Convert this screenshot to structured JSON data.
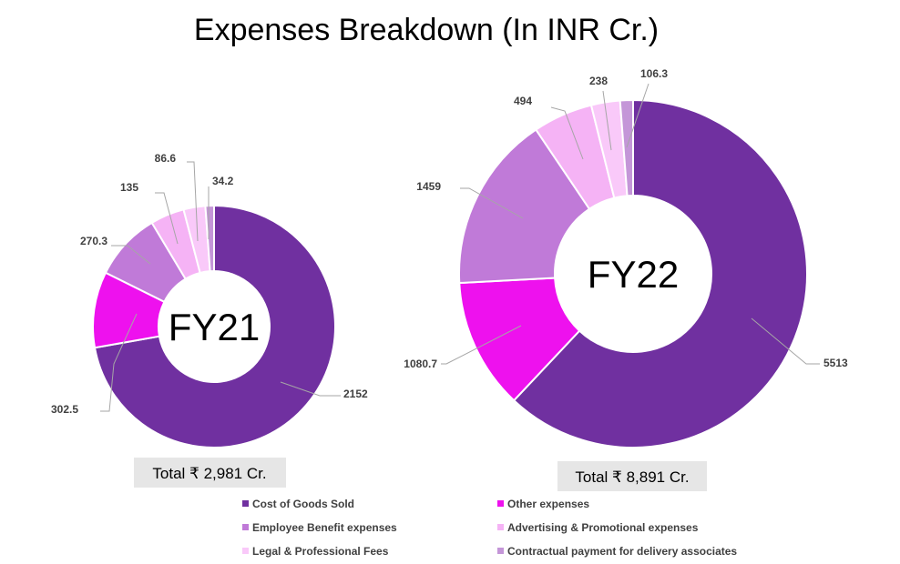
{
  "chart_data": {
    "type": "pie",
    "title": "Expenses Breakdown (In INR Cr.)",
    "categories": [
      "Cost of Goods Sold",
      "Other expenses",
      "Employee Benefit expenses",
      "Advertising & Promotional expenses",
      "Legal & Professional Fees",
      "Contractual payment for delivery associates"
    ],
    "colors": [
      "#7030a0",
      "#ee11ee",
      "#c07ad8",
      "#f5b3f5",
      "#f9c9f9",
      "#c496d8"
    ],
    "legend_position": "bottom",
    "charts": [
      {
        "center_label": "FY21",
        "total_label": "Total ₹ 2,981 Cr.",
        "values": [
          2152,
          302.5,
          270.3,
          135,
          86.6,
          34.2
        ],
        "value_labels": [
          "2152",
          "302.5",
          "270.3",
          "135",
          "86.6",
          "34.2"
        ]
      },
      {
        "center_label": "FY22",
        "total_label": "Total ₹ 8,891 Cr.",
        "values": [
          5513,
          1080.7,
          1459,
          494,
          238,
          106.3
        ],
        "value_labels": [
          "5513",
          "1080.7",
          "1459",
          "494",
          "238",
          "106.3"
        ]
      }
    ]
  }
}
